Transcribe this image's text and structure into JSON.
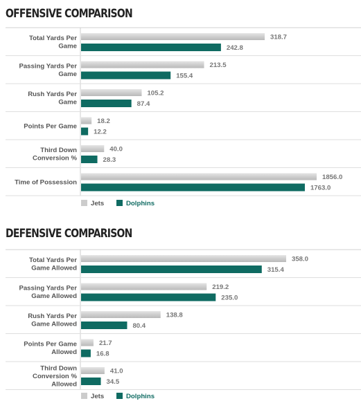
{
  "chart_data": [
    {
      "type": "bar",
      "orientation": "horizontal",
      "title": "OFFENSIVE COMPARISON",
      "categories": [
        "Total Yards Per Game",
        "Passing Yards Per Game",
        "Rush Yards Per Game",
        "Points Per Game",
        "Third Down Conversion %",
        "Time of Possession"
      ],
      "category_lines": [
        [
          "Total Yards Per",
          "Game"
        ],
        [
          "Passing Yards Per",
          "Game"
        ],
        [
          "Rush Yards Per",
          "Game"
        ],
        [
          "Points Per Game"
        ],
        [
          "Third Down",
          "Conversion %"
        ],
        [
          "Time of Possession"
        ]
      ],
      "series": [
        {
          "name": "Jets",
          "color": "#cccccc",
          "values": [
            318.7,
            213.5,
            105.2,
            18.2,
            40.0,
            1856.0
          ],
          "labels": [
            "318.7",
            "213.5",
            "105.2",
            "18.2",
            "40.0",
            "1856.0"
          ]
        },
        {
          "name": "Dolphins",
          "color": "#0f6b62",
          "values": [
            242.8,
            155.4,
            87.4,
            12.2,
            28.3,
            1763.0
          ],
          "labels": [
            "242.8",
            "155.4",
            "87.4",
            "12.2",
            "28.3",
            "1763.0"
          ]
        }
      ],
      "legend": "bottom-left",
      "grid": false
    },
    {
      "type": "bar",
      "orientation": "horizontal",
      "title": "DEFENSIVE COMPARISON",
      "categories": [
        "Total Yards Per Game Allowed",
        "Passing Yards Per Game Allowed",
        "Rush Yards Per Game Allowed",
        "Points Per Game Allowed",
        "Third Down Conversion % Allowed"
      ],
      "category_lines": [
        [
          "Total Yards Per",
          "Game Allowed"
        ],
        [
          "Passing Yards Per",
          "Game Allowed"
        ],
        [
          "Rush Yards Per",
          "Game Allowed"
        ],
        [
          "Points Per Game",
          "Allowed"
        ],
        [
          "Third Down",
          "Conversion %",
          "Allowed"
        ]
      ],
      "series": [
        {
          "name": "Jets",
          "color": "#cccccc",
          "values": [
            358.0,
            219.2,
            138.8,
            21.7,
            41.0
          ],
          "labels": [
            "358.0",
            "219.2",
            "138.8",
            "21.7",
            "41.0"
          ]
        },
        {
          "name": "Dolphins",
          "color": "#0f6b62",
          "values": [
            315.4,
            235.0,
            80.4,
            16.8,
            34.5
          ],
          "labels": [
            "315.4",
            "235.0",
            "80.4",
            "16.8",
            "34.5"
          ]
        }
      ],
      "legend": "bottom-left",
      "grid": false
    }
  ]
}
